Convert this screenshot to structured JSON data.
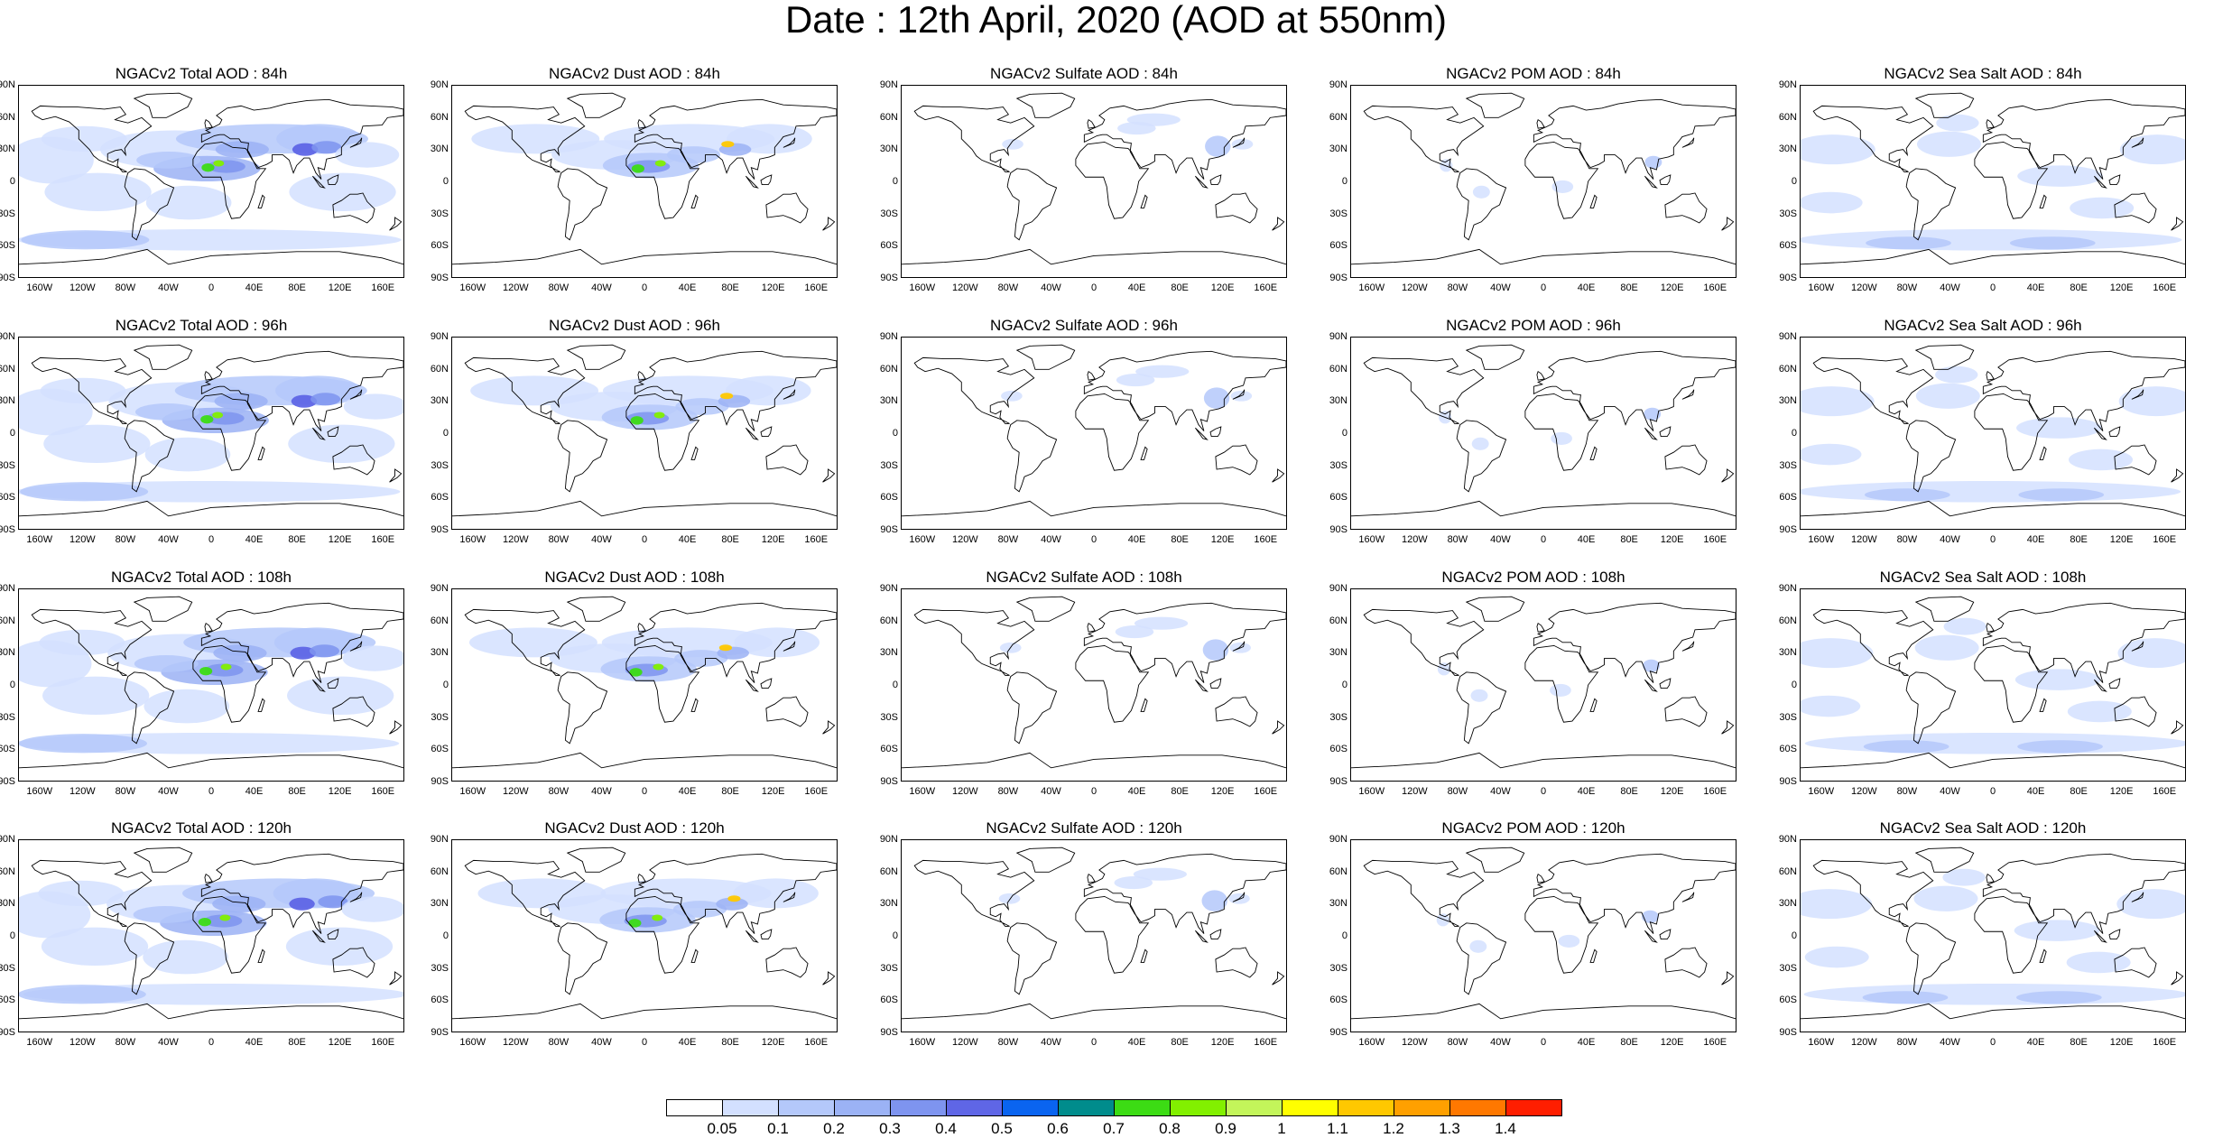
{
  "title": "Date : 12th April, 2020 (AOD at 550nm)",
  "lat_ticks": [
    "90N",
    "60N",
    "30N",
    "0",
    "30S",
    "60S",
    "90S"
  ],
  "lon_ticks": [
    "160W",
    "120W",
    "80W",
    "40W",
    "0",
    "40E",
    "80E",
    "120E",
    "160E"
  ],
  "panels": [
    {
      "title": "NGACv2 Total AOD : 84h",
      "species": "total"
    },
    {
      "title": "NGACv2 Dust AOD : 84h",
      "species": "dust"
    },
    {
      "title": "NGACv2 Sulfate AOD : 84h",
      "species": "sulfate"
    },
    {
      "title": "NGACv2 POM AOD : 84h",
      "species": "pom"
    },
    {
      "title": "NGACv2 Sea Salt AOD : 84h",
      "species": "seasalt"
    },
    {
      "title": "NGACv2 Total AOD : 96h",
      "species": "total"
    },
    {
      "title": "NGACv2 Dust AOD : 96h",
      "species": "dust"
    },
    {
      "title": "NGACv2 Sulfate AOD : 96h",
      "species": "sulfate"
    },
    {
      "title": "NGACv2 POM AOD : 96h",
      "species": "pom"
    },
    {
      "title": "NGACv2 Sea Salt AOD : 96h",
      "species": "seasalt"
    },
    {
      "title": "NGACv2 Total AOD : 108h",
      "species": "total"
    },
    {
      "title": "NGACv2 Dust AOD : 108h",
      "species": "dust"
    },
    {
      "title": "NGACv2 Sulfate AOD : 108h",
      "species": "sulfate"
    },
    {
      "title": "NGACv2 POM AOD : 108h",
      "species": "pom"
    },
    {
      "title": "NGACv2 Sea Salt AOD : 108h",
      "species": "seasalt"
    },
    {
      "title": "NGACv2 Total AOD : 120h",
      "species": "total"
    },
    {
      "title": "NGACv2 Dust AOD : 120h",
      "species": "dust"
    },
    {
      "title": "NGACv2 Sulfate AOD : 120h",
      "species": "sulfate"
    },
    {
      "title": "NGACv2 POM AOD : 120h",
      "species": "pom"
    },
    {
      "title": "NGACv2 Sea Salt  AOD : 120h",
      "species": "seasalt"
    }
  ],
  "colorbar": {
    "labels": [
      "0.05",
      "0.1",
      "0.2",
      "0.3",
      "0.4",
      "0.5",
      "0.6",
      "0.7",
      "0.8",
      "0.9",
      "1",
      "1.1",
      "1.2",
      "1.3",
      "1.4"
    ],
    "colors": [
      "#ffffff",
      "#d3e0ff",
      "#b4c8fa",
      "#9bb2f5",
      "#7e94ef",
      "#5f66e6",
      "#0a64f0",
      "#008c8c",
      "#3cdc14",
      "#82f000",
      "#c3f55a",
      "#ffff00",
      "#ffc800",
      "#ffa000",
      "#ff7800",
      "#ff1e00"
    ]
  }
}
